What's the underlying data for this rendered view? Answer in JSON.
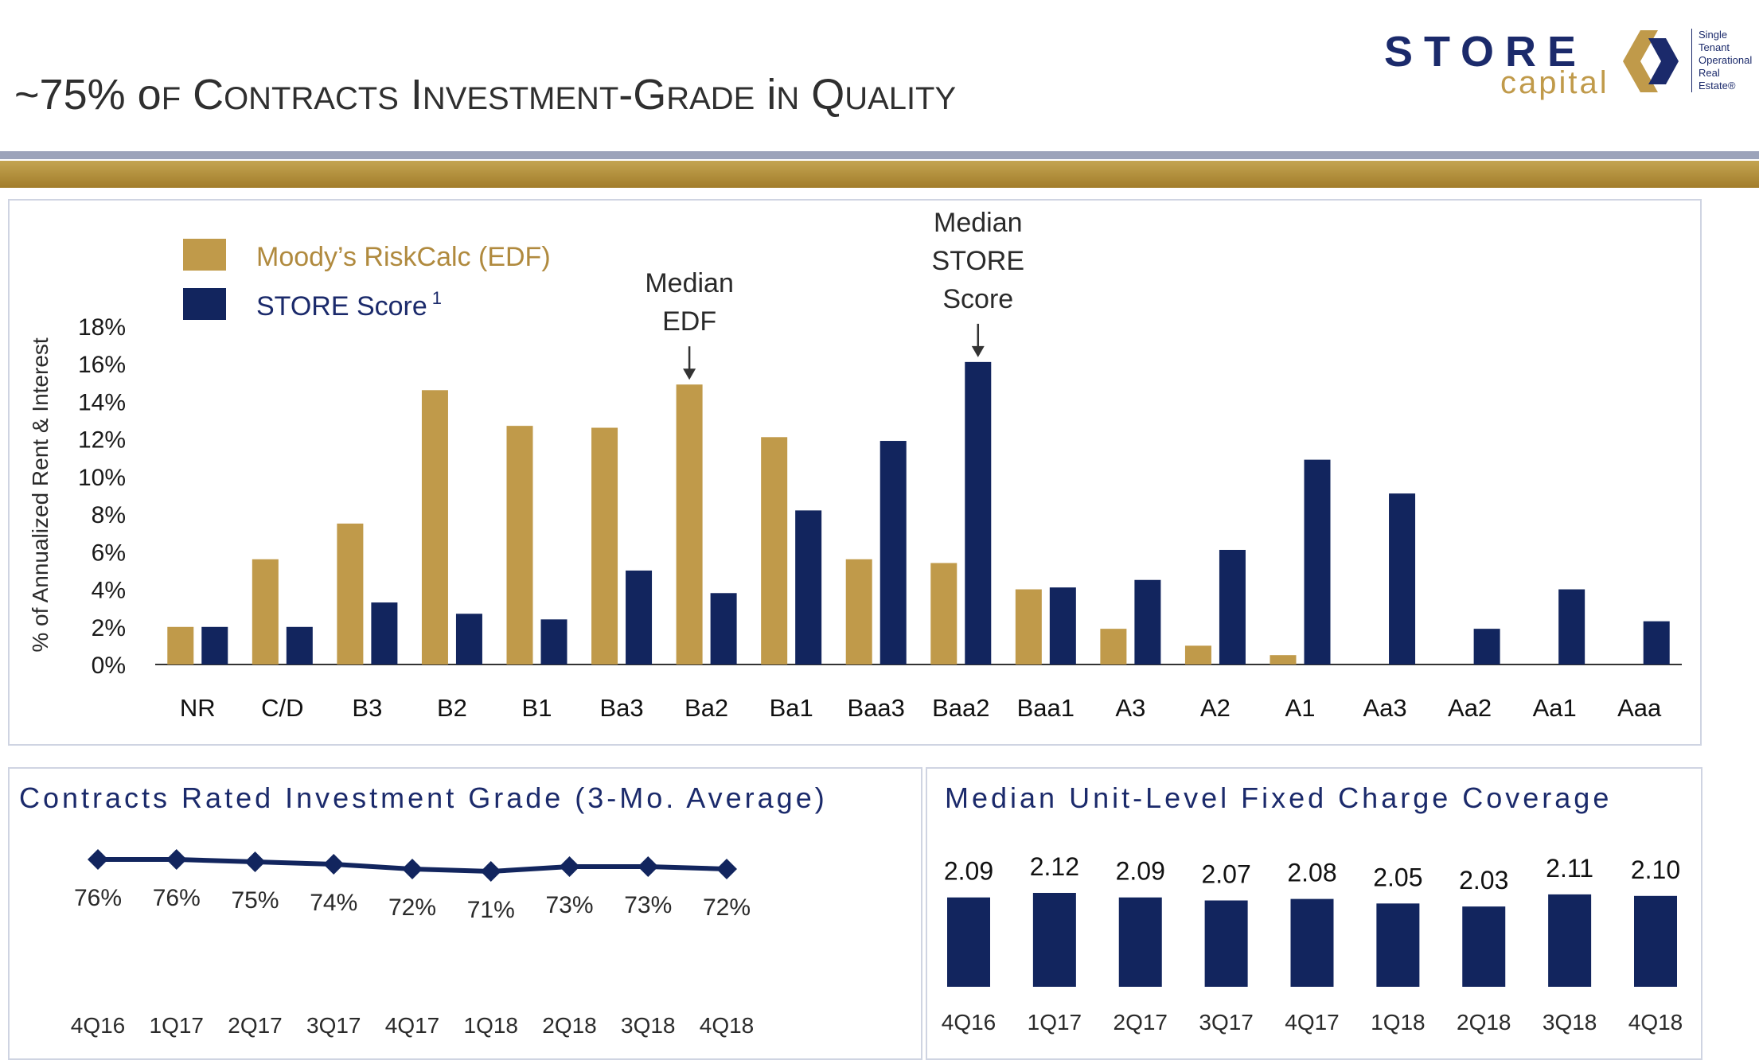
{
  "header": {
    "title": "~75% of Contracts Investment-Grade in Quality"
  },
  "logo": {
    "wordmark": "STORE",
    "sub": "capital",
    "tagline": [
      "Single",
      "Tenant",
      "Operational",
      "Real",
      "Estate®"
    ]
  },
  "colors": {
    "gold": "#c09a4a",
    "navy": "#12255e",
    "title_navy": "#1b2a6b"
  },
  "chart_data": [
    {
      "type": "bar",
      "title": "",
      "xlabel": "",
      "ylabel": "% of Annualized Rent & Interest",
      "ylim": [
        0,
        18
      ],
      "yticks": [
        "0%",
        "2%",
        "4%",
        "6%",
        "8%",
        "10%",
        "12%",
        "14%",
        "16%",
        "18%"
      ],
      "categories": [
        "NR",
        "C/D",
        "B3",
        "B2",
        "B1",
        "Ba3",
        "Ba2",
        "Ba1",
        "Baa3",
        "Baa2",
        "Baa1",
        "A3",
        "A2",
        "A1",
        "Aa3",
        "Aa2",
        "Aa1",
        "Aaa"
      ],
      "series": [
        {
          "name": "Moody’s RiskCalc (EDF)",
          "color": "#c09a4a",
          "values": [
            2.0,
            5.6,
            7.5,
            14.6,
            12.7,
            12.6,
            14.9,
            12.1,
            5.6,
            5.4,
            4.0,
            1.9,
            1.0,
            0.5,
            0,
            0,
            0,
            0
          ]
        },
        {
          "name": "STORE Score",
          "superscript": "1",
          "color": "#12255e",
          "values": [
            2.0,
            2.0,
            3.3,
            2.7,
            2.4,
            5.0,
            3.8,
            8.2,
            11.9,
            16.1,
            4.1,
            4.5,
            6.1,
            10.9,
            9.1,
            1.9,
            4.0,
            2.3
          ]
        }
      ],
      "annotations": [
        {
          "lines": [
            "Median",
            "EDF"
          ],
          "category": "Ba2"
        },
        {
          "lines": [
            "Median",
            "STORE",
            "Score"
          ],
          "category": "Baa2"
        }
      ],
      "grid": false,
      "legend": "top-left"
    },
    {
      "type": "line",
      "title": "Contracts Rated Investment Grade (3-Mo. Average)",
      "categories": [
        "4Q16",
        "1Q17",
        "2Q17",
        "3Q17",
        "4Q17",
        "1Q18",
        "2Q18",
        "3Q18",
        "4Q18"
      ],
      "values": [
        76,
        76,
        75,
        74,
        72,
        71,
        73,
        73,
        72
      ],
      "labels": [
        "76%",
        "76%",
        "75%",
        "74%",
        "72%",
        "71%",
        "73%",
        "73%",
        "72%"
      ],
      "color": "#12255e"
    },
    {
      "type": "bar",
      "title": "Median Unit-Level Fixed Charge Coverage",
      "categories": [
        "4Q16",
        "1Q17",
        "2Q17",
        "3Q17",
        "4Q17",
        "1Q18",
        "2Q18",
        "3Q18",
        "4Q18"
      ],
      "values": [
        2.09,
        2.12,
        2.09,
        2.07,
        2.08,
        2.05,
        2.03,
        2.11,
        2.1
      ],
      "labels": [
        "2.09",
        "2.12",
        "2.09",
        "2.07",
        "2.08",
        "2.05",
        "2.03",
        "2.11",
        "2.10"
      ],
      "color": "#12255e"
    }
  ]
}
